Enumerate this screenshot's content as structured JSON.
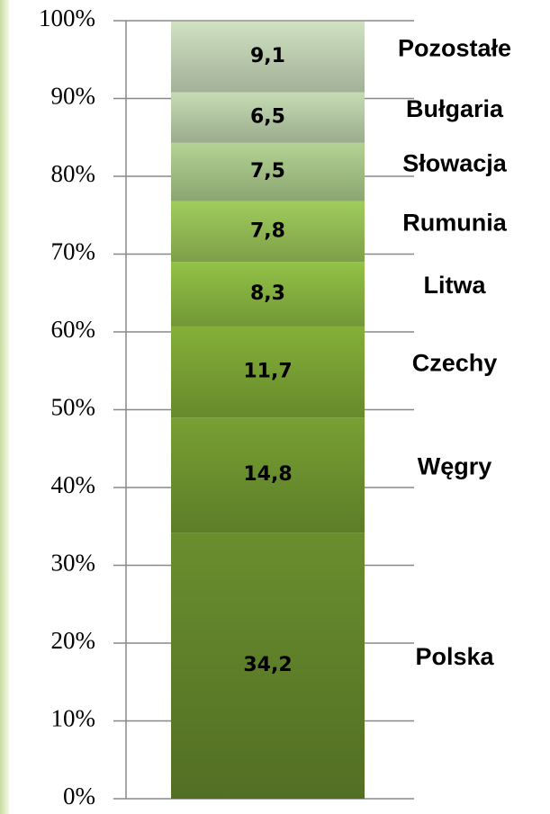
{
  "chart_data": {
    "type": "stacked_bar",
    "categories": [
      null
    ],
    "series": [
      {
        "name": "Polska",
        "color": "#6a8e2e",
        "values": [
          34.2
        ],
        "value_labels": [
          "34,2"
        ]
      },
      {
        "name": "Węgry",
        "color": "#77a033",
        "values": [
          14.8
        ],
        "value_labels": [
          "14,8"
        ]
      },
      {
        "name": "Czechy",
        "color": "#84b038",
        "values": [
          11.7
        ],
        "value_labels": [
          "11,7"
        ]
      },
      {
        "name": "Litwa",
        "color": "#92c246",
        "values": [
          8.3
        ],
        "value_labels": [
          "8,3"
        ]
      },
      {
        "name": "Rumunia",
        "color": "#a0cc5c",
        "values": [
          7.8
        ],
        "value_labels": [
          "7,8"
        ]
      },
      {
        "name": "Słowacja",
        "color": "#b3d392",
        "values": [
          7.5
        ],
        "value_labels": [
          "7,5"
        ]
      },
      {
        "name": "Bułgaria",
        "color": "#c6dcb4",
        "values": [
          6.5
        ],
        "value_labels": [
          "6,5"
        ]
      },
      {
        "name": "Pozostałe",
        "color": "#d0e2c2",
        "values": [
          9.1
        ],
        "value_labels": [
          "9,1"
        ]
      }
    ],
    "ylim": [
      0,
      100
    ],
    "yticks": [
      {
        "value": 0,
        "label": "0%"
      },
      {
        "value": 10,
        "label": "10%"
      },
      {
        "value": 20,
        "label": "20%"
      },
      {
        "value": 30,
        "label": "30%"
      },
      {
        "value": 40,
        "label": "40%"
      },
      {
        "value": 50,
        "label": "50%"
      },
      {
        "value": 60,
        "label": "60%"
      },
      {
        "value": 70,
        "label": "70%"
      },
      {
        "value": 80,
        "label": "80%"
      },
      {
        "value": 90,
        "label": "90%"
      },
      {
        "value": 100,
        "label": "100%"
      }
    ],
    "grid": true
  }
}
